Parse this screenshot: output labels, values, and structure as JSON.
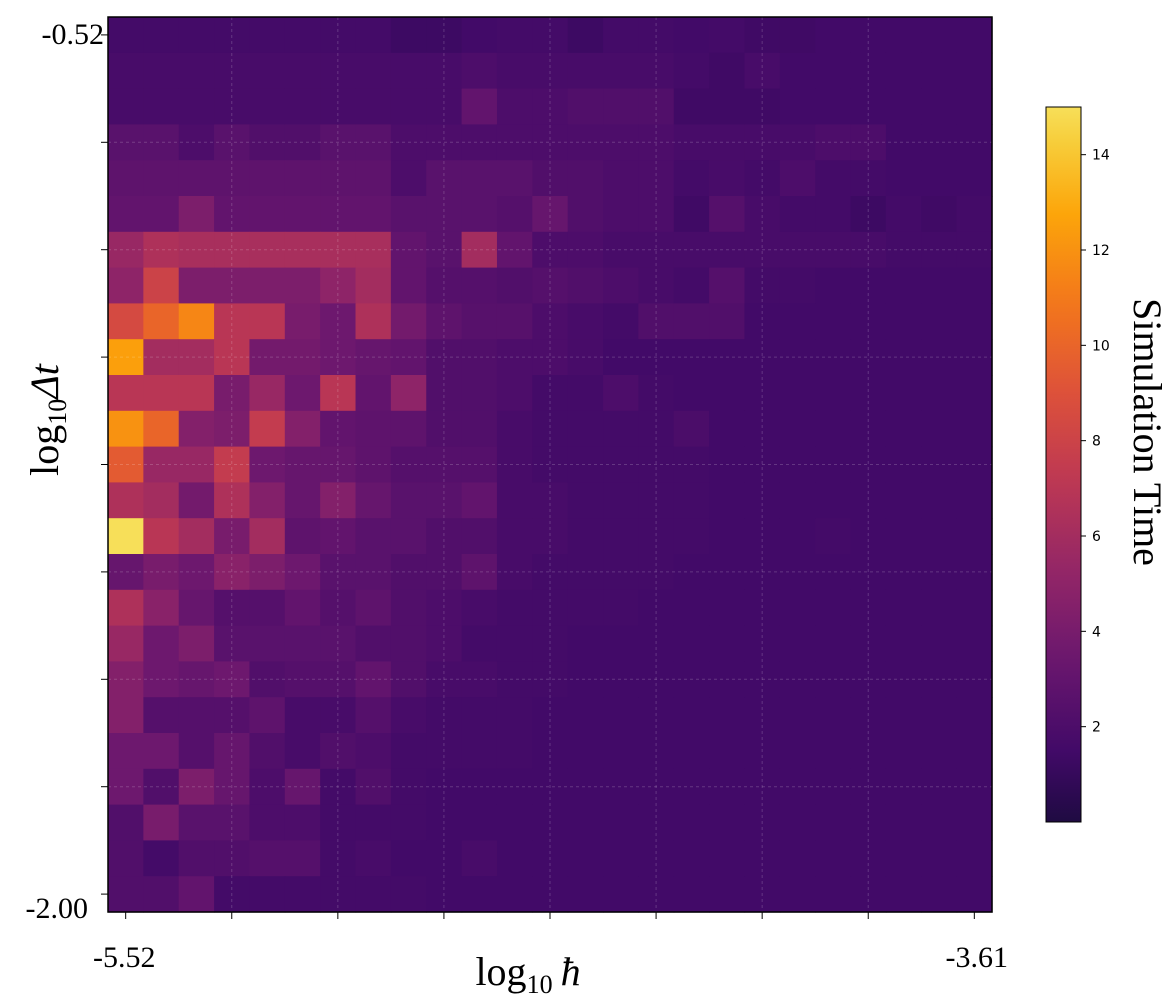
{
  "chart_data": {
    "type": "heatmap",
    "title": "",
    "xlabel": {
      "base": "log",
      "sub": "10",
      "symbol": "ħ"
    },
    "ylabel": {
      "base": "log",
      "sub": "10",
      "symbol": "Δt"
    },
    "x_range": [
      -5.52,
      -3.61
    ],
    "y_range": [
      -2.0,
      -0.52
    ],
    "x_tick_labels": [
      "-5.52",
      "-3.61"
    ],
    "y_tick_labels": [
      "-0.52",
      "-2.00"
    ],
    "colorbar": {
      "label": "Simulation Time",
      "ticks": [
        2,
        4,
        6,
        8,
        10,
        12,
        14
      ],
      "range": [
        0,
        15
      ],
      "colormap": "inferno"
    },
    "grid": true,
    "n_cols": 25,
    "n_rows": 25,
    "row_order": "top_to_bottom",
    "values": [
      [
        1.6,
        1.6,
        1.6,
        1.6,
        1.6,
        1.6,
        1.6,
        1.6,
        1.3,
        1.3,
        1.5,
        1.6,
        1.6,
        1.3,
        1.6,
        1.6,
        1.5,
        1.6,
        1.4,
        1.4,
        1.5,
        1.5,
        1.5,
        1.5,
        1.5
      ],
      [
        1.8,
        1.8,
        1.8,
        1.8,
        1.8,
        1.8,
        1.8,
        1.8,
        1.8,
        1.8,
        2.0,
        1.8,
        1.8,
        1.8,
        1.8,
        1.8,
        1.6,
        1.4,
        1.8,
        1.5,
        1.5,
        1.5,
        1.5,
        1.5,
        1.5
      ],
      [
        1.8,
        1.8,
        1.8,
        1.8,
        1.8,
        1.8,
        1.8,
        1.8,
        1.8,
        1.8,
        3.0,
        2.0,
        2.0,
        2.2,
        2.2,
        2.2,
        1.4,
        1.4,
        1.4,
        1.5,
        1.5,
        1.5,
        1.5,
        1.5,
        1.5
      ],
      [
        2.6,
        2.6,
        2.0,
        2.6,
        2.2,
        2.2,
        2.6,
        2.6,
        2.0,
        2.0,
        2.0,
        2.0,
        2.0,
        2.0,
        2.0,
        2.0,
        1.8,
        1.8,
        1.8,
        1.8,
        2.0,
        2.0,
        1.5,
        1.5,
        1.5
      ],
      [
        2.8,
        2.8,
        2.8,
        2.8,
        2.8,
        2.8,
        2.8,
        2.8,
        2.0,
        2.6,
        2.6,
        2.6,
        2.2,
        2.2,
        2.0,
        2.0,
        1.6,
        1.8,
        1.6,
        2.0,
        1.6,
        1.6,
        1.5,
        1.5,
        1.5
      ],
      [
        3.0,
        3.0,
        4.2,
        3.0,
        3.0,
        3.0,
        3.0,
        3.0,
        2.6,
        2.6,
        2.6,
        2.4,
        3.2,
        2.2,
        2.0,
        2.0,
        1.4,
        2.4,
        1.8,
        1.6,
        1.6,
        1.3,
        1.6,
        1.4,
        1.6
      ],
      [
        5.5,
        6.5,
        6.2,
        6.2,
        6.2,
        6.2,
        6.2,
        6.2,
        3.0,
        2.6,
        6.0,
        3.0,
        2.0,
        2.0,
        1.8,
        1.8,
        1.8,
        1.8,
        1.8,
        1.8,
        1.8,
        1.8,
        1.6,
        1.6,
        1.6
      ],
      [
        5.0,
        8.0,
        4.2,
        4.2,
        4.2,
        4.2,
        5.0,
        6.0,
        3.0,
        2.4,
        2.4,
        2.2,
        2.4,
        2.2,
        2.0,
        1.8,
        1.6,
        2.4,
        1.6,
        1.6,
        1.5,
        1.5,
        1.5,
        1.5,
        1.5
      ],
      [
        8.5,
        10.0,
        11.5,
        7.0,
        7.0,
        4.0,
        3.5,
        6.5,
        3.8,
        2.8,
        2.5,
        2.5,
        2.0,
        1.8,
        1.6,
        2.2,
        2.2,
        2.2,
        1.5,
        1.5,
        1.5,
        1.5,
        1.5,
        1.5,
        1.5
      ],
      [
        12.5,
        6.0,
        6.0,
        7.0,
        3.8,
        3.8,
        3.5,
        3.2,
        3.0,
        2.2,
        2.2,
        2.0,
        2.0,
        1.8,
        1.5,
        1.5,
        1.5,
        1.5,
        1.5,
        1.5,
        1.5,
        1.5,
        1.5,
        1.5,
        1.5
      ],
      [
        7.0,
        7.0,
        7.0,
        4.0,
        5.5,
        3.5,
        7.0,
        3.0,
        5.0,
        2.2,
        2.2,
        2.0,
        1.6,
        1.6,
        2.0,
        1.6,
        1.5,
        1.5,
        1.5,
        1.5,
        1.5,
        1.5,
        1.5,
        1.5,
        1.5
      ],
      [
        12.0,
        10.0,
        4.5,
        4.2,
        7.5,
        4.5,
        3.0,
        2.8,
        2.8,
        2.2,
        2.2,
        1.8,
        1.6,
        1.6,
        1.6,
        1.6,
        1.9,
        1.5,
        1.5,
        1.5,
        1.5,
        1.5,
        1.5,
        1.5,
        1.5
      ],
      [
        9.5,
        5.5,
        5.5,
        7.5,
        3.5,
        3.2,
        3.2,
        2.8,
        2.4,
        2.4,
        2.4,
        1.8,
        1.6,
        1.6,
        1.6,
        1.6,
        1.6,
        1.5,
        1.5,
        1.5,
        1.5,
        1.5,
        1.5,
        1.5,
        1.5
      ],
      [
        6.5,
        6.0,
        3.8,
        6.5,
        4.5,
        3.2,
        4.5,
        3.2,
        2.6,
        2.6,
        3.0,
        1.8,
        1.8,
        1.6,
        1.6,
        1.6,
        1.6,
        1.5,
        1.5,
        1.5,
        1.5,
        1.5,
        1.5,
        1.5,
        1.5
      ],
      [
        15.0,
        7.0,
        6.0,
        4.0,
        6.0,
        2.8,
        3.0,
        2.6,
        2.6,
        2.2,
        2.2,
        1.8,
        1.8,
        1.6,
        1.6,
        1.6,
        1.6,
        1.5,
        1.5,
        1.5,
        1.6,
        1.5,
        1.5,
        1.5,
        1.5
      ],
      [
        3.2,
        4.0,
        3.5,
        4.8,
        4.2,
        3.5,
        2.6,
        2.6,
        2.2,
        2.2,
        2.8,
        1.8,
        1.6,
        1.6,
        1.6,
        1.6,
        1.5,
        1.5,
        1.5,
        1.5,
        1.5,
        1.5,
        1.5,
        1.5,
        1.5
      ],
      [
        6.5,
        4.8,
        3.2,
        2.4,
        2.4,
        3.0,
        2.4,
        2.8,
        2.2,
        2.0,
        1.8,
        1.6,
        1.6,
        1.6,
        1.6,
        1.5,
        1.5,
        1.5,
        1.5,
        1.5,
        1.5,
        1.5,
        1.5,
        1.5,
        1.5
      ],
      [
        5.5,
        3.5,
        4.2,
        2.6,
        2.6,
        2.6,
        2.6,
        2.2,
        2.2,
        2.0,
        1.6,
        1.6,
        1.6,
        1.5,
        1.5,
        1.5,
        1.5,
        1.5,
        1.5,
        1.5,
        1.5,
        1.5,
        1.5,
        1.5,
        1.5
      ],
      [
        4.5,
        3.5,
        3.2,
        3.5,
        2.2,
        2.4,
        2.4,
        3.0,
        2.2,
        1.8,
        1.8,
        1.6,
        1.6,
        1.5,
        1.5,
        1.5,
        1.5,
        1.5,
        1.5,
        1.5,
        1.5,
        1.5,
        1.5,
        1.5,
        1.5
      ],
      [
        4.5,
        2.4,
        2.4,
        2.4,
        2.8,
        1.8,
        1.8,
        2.4,
        1.8,
        1.6,
        1.6,
        1.6,
        1.5,
        1.5,
        1.5,
        1.5,
        1.5,
        1.5,
        1.5,
        1.5,
        1.5,
        1.5,
        1.5,
        1.5,
        1.5
      ],
      [
        3.5,
        3.5,
        2.4,
        3.2,
        2.2,
        1.8,
        2.2,
        2.0,
        1.6,
        1.6,
        1.6,
        1.6,
        1.5,
        1.5,
        1.5,
        1.5,
        1.5,
        1.5,
        1.5,
        1.5,
        1.5,
        1.5,
        1.5,
        1.5,
        1.5
      ],
      [
        3.5,
        2.2,
        4.2,
        3.2,
        2.0,
        3.2,
        1.6,
        2.2,
        1.6,
        1.5,
        1.5,
        1.5,
        1.5,
        1.5,
        1.5,
        1.5,
        1.5,
        1.5,
        1.5,
        1.5,
        1.5,
        1.5,
        1.5,
        1.5,
        1.5
      ],
      [
        2.2,
        4.0,
        2.6,
        2.6,
        2.0,
        2.0,
        1.6,
        1.6,
        1.6,
        1.5,
        1.5,
        1.5,
        1.5,
        1.5,
        1.5,
        1.5,
        1.5,
        1.5,
        1.5,
        1.5,
        1.5,
        1.5,
        1.5,
        1.5,
        1.5
      ],
      [
        2.2,
        1.6,
        2.2,
        2.2,
        2.4,
        2.4,
        1.6,
        1.8,
        1.5,
        1.5,
        1.8,
        1.5,
        1.5,
        1.5,
        1.5,
        1.5,
        1.5,
        1.5,
        1.5,
        1.5,
        1.5,
        1.5,
        1.5,
        1.5,
        1.5
      ],
      [
        2.2,
        2.2,
        3.0,
        1.6,
        1.6,
        1.6,
        1.6,
        1.6,
        1.6,
        1.5,
        1.5,
        1.5,
        1.5,
        1.5,
        1.5,
        1.5,
        1.5,
        1.5,
        1.5,
        1.5,
        1.5,
        1.5,
        1.5,
        1.5,
        1.5
      ]
    ]
  }
}
